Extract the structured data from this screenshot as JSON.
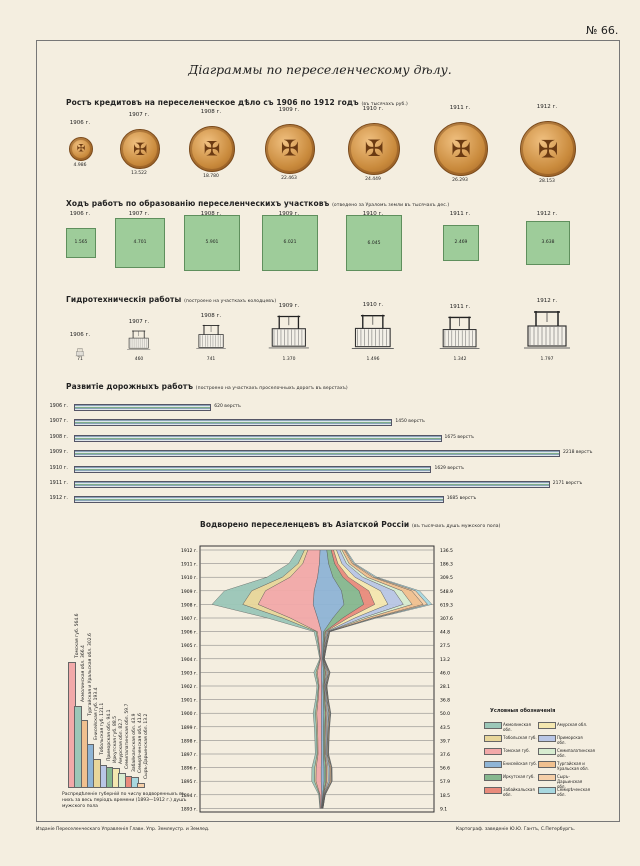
{
  "plate_number": "№ 66.",
  "title": "Діаграммы по переселенческому дѣлу.",
  "sections": {
    "credits": {
      "title": "Ростъ кредитовъ на переселенческое дѣло съ 1906 по 1912 годъ",
      "note": "(въ тысячахъ руб.)"
    },
    "plots": {
      "title": "Ходъ работъ по образованію переселенческихъ участковъ",
      "note": "(отведено за Ураломъ земли въ тысячахъ дес.)"
    },
    "hydro": {
      "title": "Гидротехническія работы",
      "note": "(построено на участкахъ колодцевъ)"
    },
    "roads": {
      "title": "Развитіе дорожныхъ работъ",
      "note": "(построено на участкахъ проселочныхъ дорогъ въ верстахъ)"
    },
    "settlers": {
      "title": "Водворено переселенцевъ въ Азіатской Россіи",
      "note": "(въ тысячахъ душъ мужского пола)"
    }
  },
  "roads_unit": "верстъ",
  "legend_title": "Условныя обозначенія",
  "bar_caption": "Распредѣленіе губерній по числу водворенныхъ въ нихъ за весь періодъ времени (1893—1912 г.) душъ мужского пола",
  "footer_left": "Изданіе Переселенческаго Управленія Главн. Упр. Землеустр. и Землед.",
  "footer_right": "Картограф. заведеніе Ю.Ю. Гантъ, С.Петербургъ.",
  "chart_data": [
    {
      "type": "bar",
      "id": "credits",
      "title": "Ростъ кредитовъ на переселенческое дѣло съ 1906 по 1912 годъ",
      "categories": [
        "1906 г.",
        "1907 г.",
        "1908 г.",
        "1909 г.",
        "1910 г.",
        "1911 г.",
        "1912 г."
      ],
      "values": [
        4.986,
        13.522,
        18.78,
        22.463,
        24.449,
        26.293,
        28.153
      ],
      "value_labels": [
        "4.986",
        "13.522",
        "18.780",
        "22.463",
        "24.449",
        "26.293",
        "28.153"
      ]
    },
    {
      "type": "bar",
      "id": "plots",
      "title": "Ходъ работъ по образованію переселенческихъ участковъ",
      "categories": [
        "1906 г.",
        "1907 г.",
        "1908 г.",
        "1909 г.",
        "1910 г.",
        "1911 г.",
        "1912 г."
      ],
      "values": [
        1.565,
        4.701,
        5.901,
        6.021,
        6.045,
        2.469,
        3.638
      ],
      "value_labels": [
        "1.565",
        "4.701",
        "5.901",
        "6.021",
        "6.045",
        "2.469",
        "3.638"
      ]
    },
    {
      "type": "bar",
      "id": "hydro",
      "title": "Гидротехническія работы",
      "categories": [
        "1906 г.",
        "1907 г.",
        "1908 г.",
        "1909 г.",
        "1910 г.",
        "1911 г.",
        "1912 г."
      ],
      "values": [
        71,
        460,
        741,
        1370,
        1496,
        1342,
        1797
      ],
      "value_labels": [
        "71",
        "460",
        "741",
        "1.370",
        "1.496",
        "1.342",
        "1.797"
      ]
    },
    {
      "type": "bar",
      "id": "roads",
      "title": "Развитіе дорожныхъ работъ",
      "categories": [
        "1906 г.",
        "1907 г.",
        "1908 г.",
        "1909 г.",
        "1910 г.",
        "1911 г.",
        "1912 г."
      ],
      "values": [
        620,
        1450,
        1675,
        2218,
        1629,
        2171,
        1685
      ],
      "xlim": [
        0,
        2218
      ]
    },
    {
      "type": "area",
      "id": "settlers",
      "title": "Водворено переселенцевъ въ Азіатской Россіи",
      "categories": [
        "1912 г.",
        "1911 г.",
        "1910 г.",
        "1909 г.",
        "1908 г.",
        "1907 г.",
        "1906 г.",
        "1905 г.",
        "1904 г.",
        "1903 г.",
        "1902 г.",
        "1901 г.",
        "1900 г.",
        "1899 г.",
        "1898 г.",
        "1897 г.",
        "1896 г.",
        "1895 г.",
        "1894 г.",
        "1893 г."
      ],
      "values": [
        136.5,
        186.3,
        309.5,
        548.9,
        619.3,
        307.6,
        44.8,
        27.5,
        13.2,
        46.0,
        28.1,
        36.8,
        50.0,
        43.5,
        39.7,
        37.6,
        56.6,
        57.9,
        18.5,
        9.1
      ],
      "value_labels": [
        "136.5",
        "186.3",
        "309.5",
        "548.9",
        "619.3",
        "307.6",
        "44.8",
        "27.5",
        "13.2",
        "46.0",
        "28.1",
        "36.8",
        "50.0",
        "43.5",
        "39.7",
        "37.6",
        "56.6",
        "57.9",
        "18.5",
        "9.1"
      ],
      "legend": [
        {
          "name": "Акмолинская обл.",
          "color": "#9bc7b8"
        },
        {
          "name": "Тобольская губ.",
          "color": "#e8d69a"
        },
        {
          "name": "Томская губ.",
          "color": "#f2a9a9"
        },
        {
          "name": "Енисейская губ.",
          "color": "#8fb5d6"
        },
        {
          "name": "Иркутская губ.",
          "color": "#86b88f"
        },
        {
          "name": "Забайкальская обл.",
          "color": "#e98b7c"
        },
        {
          "name": "Амурская обл.",
          "color": "#f4e7b0"
        },
        {
          "name": "Приморская обл.",
          "color": "#b9c6e6"
        },
        {
          "name": "Семипалатинская обл.",
          "color": "#d7ecd0"
        },
        {
          "name": "Тургайская и Уральская обл.",
          "color": "#f0c08f"
        },
        {
          "name": "Сыръ-Дарьинская обл.",
          "color": "#f6cfa8"
        },
        {
          "name": "Семирѣченская обл.",
          "color": "#a8d8e0"
        }
      ]
    },
    {
      "type": "bar",
      "id": "gubernias",
      "title": "",
      "categories": [
        "Томская губ.",
        "Акмолинская обл.",
        "Тургайская и Уральская обл.",
        "Енисейская губ.",
        "Тобольская губ.",
        "Приморская обл.",
        "Иркутская губ.",
        "Амурская обл.",
        "Семипалатинская обл.",
        "Забайкальская обл.",
        "Семирѣченская обл.",
        "Сыръ-Дарьинская обл."
      ],
      "values": [
        564.6,
        366.4,
        302.6,
        193.4,
        121.1,
        94.1,
        88.5,
        82.7,
        59.7,
        43.9,
        41.6,
        13.2
      ],
      "labels": [
        "Томская губ. 564.6",
        "Акмолинская обл. 366.4",
        "Тургайская и Уральская обл. 302.6",
        "Енисейская губ. 193.4",
        "Тобольская губ. 121.1",
        "Приморская обл. 94.1",
        "Иркутская губ. 88.5",
        "Амурская обл. 82.7",
        "Семипалатинская обл. 59.7",
        "Забайкальская обл. 43.9",
        "Семирѣченская обл. 41.6",
        "Сыръ-Дарьинская обл. 13.2"
      ]
    }
  ]
}
